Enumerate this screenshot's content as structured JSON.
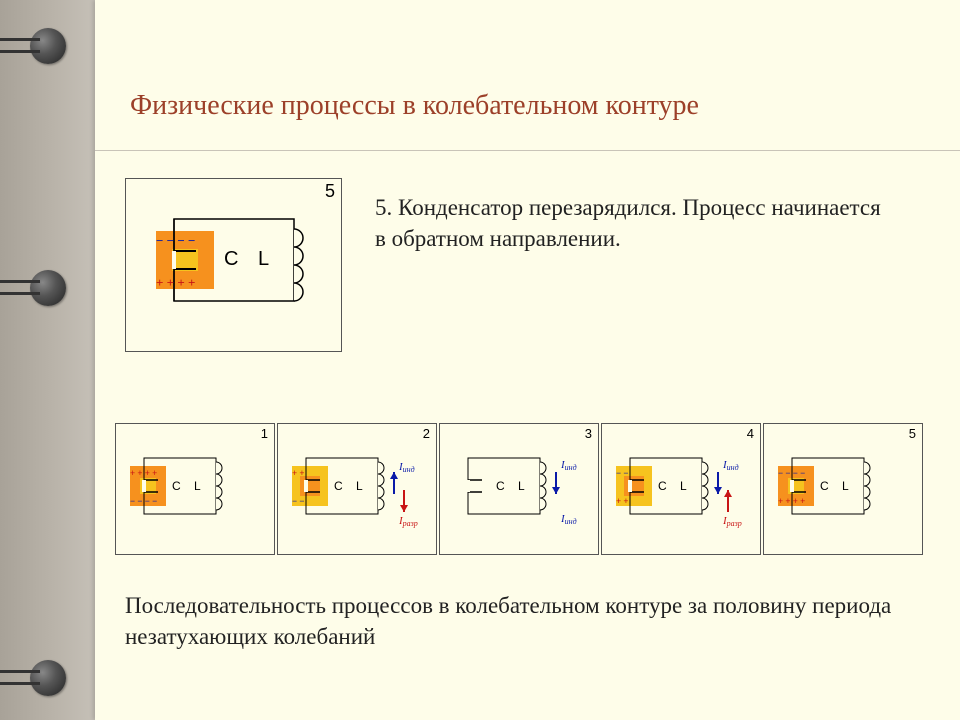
{
  "title": "Физические процессы в колебательном контуре",
  "description": "5. Конденсатор перезарядился. Процесс начинается в обратном направлении.",
  "caption": "Последовательность процессов в колебательном контуре за половину периода незатухающих колебаний",
  "main": {
    "number": "5",
    "C_label": "C",
    "L_label": "L",
    "top_charge": "− − − −",
    "top_color": "#0a1aa8",
    "bottom_charge": "+ + + +",
    "bottom_color": "#c81515",
    "cap_fill": "#f6911e",
    "cap_inner": "#f6c31e"
  },
  "cells": [
    {
      "n": "1",
      "top": "+ + + +",
      "top_c": "#c81515",
      "bot": "− − − −",
      "bot_c": "#0a1aa8",
      "cap_fill": "#f6911e",
      "I_ind": false,
      "I_razr": false
    },
    {
      "n": "2",
      "top": "+ +",
      "top_c": "#c81515",
      "bot": "− −",
      "bot_c": "#0a1aa8",
      "cap_fill": "#f6c31e",
      "I_ind": true,
      "I_ind_dir": "up",
      "I_razr": true,
      "I_razr_dir": "down"
    },
    {
      "n": "3",
      "top": "",
      "top_c": "",
      "bot": "",
      "bot_c": "",
      "cap_fill": "none",
      "I_ind": true,
      "I_ind_dir": "down",
      "I_razr": false
    },
    {
      "n": "4",
      "top": "− −",
      "top_c": "#0a1aa8",
      "bot": "+ +",
      "bot_c": "#c81515",
      "cap_fill": "#f6c31e",
      "I_ind": true,
      "I_ind_dir": "down",
      "I_razr": true,
      "I_razr_dir": "up"
    },
    {
      "n": "5",
      "top": "− − − −",
      "top_c": "#0a1aa8",
      "bot": "+ + + +",
      "bot_c": "#c81515",
      "cap_fill": "#f6911e",
      "I_ind": false,
      "I_razr": false
    }
  ],
  "labels": {
    "I_ind": "I",
    "I_ind_sub": "инд",
    "I_razr": "I",
    "I_razr_sub": "разр"
  },
  "ring_positions": [
    28,
    270,
    660
  ]
}
